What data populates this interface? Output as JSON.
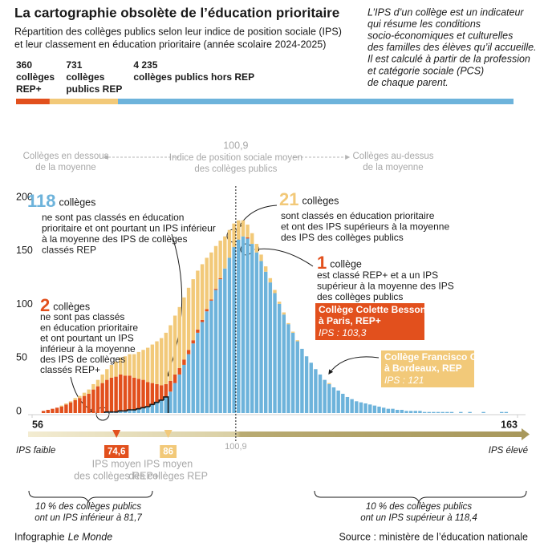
{
  "chart_data": {
    "type": "histogram",
    "title": "La cartographie obsolète de l’éducation prioritaire",
    "subtitle": [
      "Répartition des collèges publics selon leur indice de position sociale (IPS)",
      "et leur classement en éducation prioritaire (année scolaire 2024-2025)"
    ],
    "intro": [
      "L’IPS d’un collège est un indicateur",
      "qui résume les conditions",
      "socio-économiques et culturelles",
      "des familles des élèves qu’il accueille.",
      "Il est calculé à partir de la profession",
      "et catégorie sociale (PCS)",
      "de chaque parent."
    ],
    "totals": {
      "values": [
        360,
        731,
        4235
      ],
      "value_labels": [
        "360",
        "731",
        "4 235"
      ],
      "labels": [
        [
          "collèges",
          "REP+"
        ],
        [
          "collèges",
          "publics REP"
        ],
        [
          "collèges publics hors REP"
        ]
      ],
      "colors": [
        "#e2501d",
        "#f2c979",
        "#6db3db"
      ]
    },
    "scale_header": {
      "below": [
        "Collèges en dessous",
        "de la moyenne"
      ],
      "mean_text": [
        "Indice de position sociale moyen",
        "des collèges publics"
      ],
      "above": [
        "Collèges au-dessus",
        "de la moyenne"
      ]
    },
    "mean": {
      "value": 100.9,
      "label": "100,9"
    },
    "bins": [
      58,
      59,
      60,
      61,
      62,
      63,
      64,
      65,
      66,
      67,
      68,
      69,
      70,
      71,
      72,
      73,
      74,
      75,
      76,
      77,
      78,
      79,
      80,
      81,
      82,
      83,
      84,
      85,
      86,
      87,
      88,
      89,
      90,
      91,
      92,
      93,
      94,
      95,
      96,
      97,
      98,
      99,
      100,
      101,
      102,
      103,
      104,
      105,
      106,
      107,
      108,
      109,
      110,
      111,
      112,
      113,
      114,
      115,
      116,
      117,
      118,
      119,
      120,
      121,
      122,
      123,
      124,
      125,
      126,
      127,
      128,
      129,
      130,
      131,
      132,
      133,
      134,
      135,
      136,
      137,
      138,
      139,
      140,
      141,
      142,
      143,
      144,
      145,
      146,
      147,
      148,
      149,
      150,
      151,
      152,
      153,
      154,
      155,
      156,
      157,
      158,
      159,
      160,
      161
    ],
    "series": [
      {
        "color": "#6db3db",
        "values": [
          0,
          0,
          0,
          0,
          0,
          0,
          0,
          0,
          0,
          0,
          0,
          0,
          0,
          0,
          1,
          1,
          1,
          2,
          2,
          3,
          3,
          4,
          5,
          6,
          8,
          10,
          12,
          15,
          20,
          28,
          36,
          45,
          55,
          65,
          75,
          85,
          95,
          105,
          115,
          125,
          135,
          145,
          155,
          162,
          165,
          163,
          158,
          150,
          142,
          132,
          122,
          112,
          102,
          92,
          83,
          75,
          67,
          60,
          53,
          47,
          41,
          36,
          31,
          27,
          24,
          21,
          18,
          15,
          13,
          11,
          10,
          9,
          8,
          7,
          6,
          5,
          4,
          4,
          3,
          3,
          2,
          2,
          2,
          2,
          1,
          1,
          1,
          1,
          1,
          1,
          1,
          0,
          1,
          0,
          1,
          0,
          0,
          1,
          0,
          0,
          0,
          1,
          1
        ]
      },
      {
        "color": "#e2501d",
        "values": [
          2,
          3,
          4,
          5,
          6,
          8,
          10,
          12,
          14,
          16,
          18,
          22,
          25,
          28,
          30,
          32,
          33,
          34,
          33,
          32,
          30,
          28,
          26,
          23,
          20,
          17,
          14,
          12,
          10,
          8,
          6,
          5,
          4,
          3,
          3,
          2,
          2,
          1,
          1,
          1,
          0,
          0,
          0,
          0,
          0,
          1,
          0,
          0,
          0,
          0,
          0,
          0,
          0,
          0,
          0,
          0,
          0,
          0,
          0,
          0,
          0,
          0,
          0,
          0,
          0,
          0,
          0,
          0,
          0,
          0,
          0,
          0,
          0,
          0,
          0,
          0,
          0,
          0,
          0,
          0,
          0,
          0,
          0,
          0,
          0,
          0,
          0,
          0,
          0,
          0,
          0,
          0,
          0,
          0,
          0,
          0,
          0,
          0,
          0,
          0,
          0,
          0,
          0
        ]
      },
      {
        "color": "#f2c979",
        "values": [
          0,
          0,
          0,
          0,
          1,
          1,
          1,
          2,
          2,
          3,
          4,
          5,
          6,
          8,
          10,
          12,
          14,
          16,
          18,
          20,
          22,
          25,
          28,
          32,
          36,
          40,
          44,
          48,
          52,
          55,
          57,
          58,
          58,
          57,
          55,
          52,
          48,
          44,
          40,
          35,
          30,
          26,
          22,
          18,
          15,
          12,
          10,
          8,
          6,
          5,
          4,
          3,
          2,
          2,
          1,
          1,
          1,
          0,
          0,
          0,
          0,
          0,
          0,
          1,
          0,
          0,
          0,
          0,
          0,
          0,
          0,
          0,
          0,
          0,
          0,
          0,
          0,
          0,
          0,
          0,
          0,
          0,
          0,
          0,
          0,
          0,
          0,
          0,
          0,
          0,
          0,
          0,
          0,
          0,
          0,
          0,
          0,
          0,
          0,
          0,
          0,
          0,
          0
        ]
      }
    ],
    "xlim": [
      56,
      163
    ],
    "xticks": [
      56,
      163
    ],
    "ylim": [
      0,
      200
    ],
    "yticks": [
      0,
      50,
      100,
      150,
      200
    ],
    "x_low": "IPS faible",
    "x_high": "IPS élevé",
    "markers": [
      {
        "value": 74.6,
        "label": "74,6",
        "color": "#e2501d",
        "text": [
          "IPS moyen",
          "des collèges REP+"
        ]
      },
      {
        "value": 86,
        "label": "86",
        "color": "#f2c979",
        "text": [
          "IPS moyen",
          "des collèges REP"
        ]
      }
    ],
    "annotations": [
      {
        "number": 118,
        "head": "collèges",
        "color": "#6db3db",
        "lines": [
          "ne sont pas classés en éducation",
          "prioritaire et ont pourtant un IPS inférieur",
          "à la moyenne des IPS de collèges",
          "classés REP"
        ]
      },
      {
        "number": 2,
        "head": "collèges",
        "color": "#e2501d",
        "lines": [
          "ne sont pas classés",
          "en éducation prioritaire",
          "et ont pourtant un IPS",
          "inférieur à la moyenne",
          "des IPS de collèges",
          "classés REP+"
        ]
      },
      {
        "number": 21,
        "head": "collèges",
        "color": "#f2c979",
        "lines": [
          "sont classés en éducation prioritaire",
          "et ont des IPS supérieurs à la moyenne",
          "des IPS des collèges publics"
        ]
      },
      {
        "number": 1,
        "head": "collège",
        "color": "#e2501d",
        "lines": [
          "est classé REP+ et a un IPS",
          "supérieur à la moyenne des IPS",
          "des collèges publics"
        ]
      }
    ],
    "callouts": [
      {
        "lines": [
          "Collège Colette Besson",
          "à Paris, REP+"
        ],
        "ips": "IPS : 103,3",
        "color": "#e2501d"
      },
      {
        "lines": [
          "Collège Francisco Goya",
          "à Bordeaux, REP"
        ],
        "ips": "IPS : 121",
        "color": "#f2c979"
      }
    ],
    "deciles": [
      [
        "10 % des collèges publics",
        "ont un IPS inférieur à 81,7"
      ],
      [
        "10 % des collèges publics",
        "ont un IPS supérieur à 118,4"
      ]
    ],
    "credit": "Infographie",
    "credit_brand": "Le Monde",
    "source": "Source : ministère de l’éducation nationale"
  }
}
